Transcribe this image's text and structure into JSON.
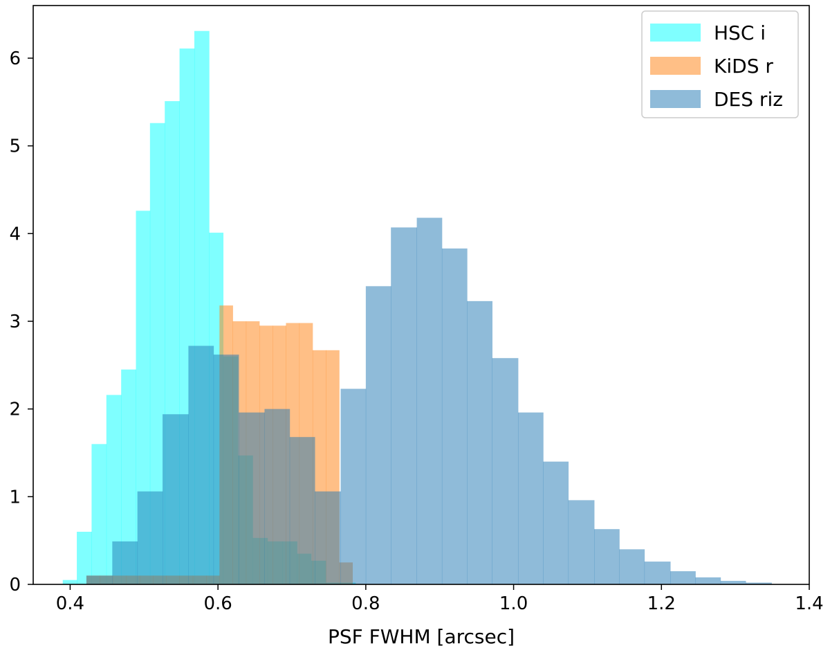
{
  "chart_data": {
    "type": "histogram",
    "title": "",
    "xlabel": "PSF FWHM [arcsec]",
    "ylabel": "",
    "xlim": [
      0.35,
      1.4
    ],
    "ylim": [
      0,
      6.6
    ],
    "xticks": [
      0.4,
      0.6,
      0.8,
      1.0,
      1.2,
      1.4
    ],
    "xtick_labels": [
      "0.4",
      "0.6",
      "0.8",
      "1.0",
      "1.2",
      "1.4"
    ],
    "yticks": [
      0,
      1,
      2,
      3,
      4,
      5,
      6
    ],
    "ytick_labels": [
      "0",
      "1",
      "2",
      "3",
      "4",
      "5",
      "6"
    ],
    "grid": false,
    "legend_position": "top-right",
    "series": [
      {
        "name": "HSC i",
        "color": "#00ffff",
        "opacity": 0.5,
        "bin_edges": [
          0.39,
          0.409,
          0.429,
          0.449,
          0.469,
          0.489,
          0.508,
          0.528,
          0.548,
          0.568,
          0.588,
          0.607,
          0.627,
          0.647,
          0.667,
          0.687,
          0.707,
          0.726,
          0.746,
          0.766,
          0.786
        ],
        "values": [
          0.05,
          0.6,
          1.6,
          2.16,
          2.45,
          4.26,
          5.26,
          5.51,
          6.11,
          6.31,
          4.01,
          2.6,
          1.47,
          0.53,
          0.49,
          0.49,
          0.35,
          0.27,
          0.02,
          0.02
        ]
      },
      {
        "name": "KiDS r",
        "color": "#ff7f0e",
        "opacity": 0.5,
        "bin_edges": [
          0.422,
          0.44,
          0.458,
          0.476,
          0.494,
          0.512,
          0.53,
          0.548,
          0.566,
          0.584,
          0.602,
          0.62,
          0.638,
          0.656,
          0.674,
          0.692,
          0.71,
          0.728,
          0.746,
          0.764,
          0.782
        ],
        "values": [
          0.1,
          0.1,
          0.1,
          0.1,
          0.1,
          0.1,
          0.1,
          0.1,
          0.1,
          0.1,
          3.18,
          3.0,
          3.0,
          2.95,
          2.95,
          2.98,
          2.98,
          2.67,
          2.67,
          0.25
        ]
      },
      {
        "name": "DES riz",
        "color": "#1f77b4",
        "opacity": 0.5,
        "bin_edges": [
          0.422,
          0.457,
          0.491,
          0.525,
          0.56,
          0.594,
          0.628,
          0.663,
          0.697,
          0.731,
          0.766,
          0.8,
          0.834,
          0.869,
          0.903,
          0.937,
          0.971,
          1.006,
          1.04,
          1.074,
          1.109,
          1.143,
          1.177,
          1.212,
          1.246,
          1.28,
          1.314,
          1.349
        ],
        "values": [
          0.1,
          0.49,
          1.06,
          1.94,
          2.72,
          2.62,
          1.96,
          2.0,
          1.68,
          1.06,
          2.23,
          3.4,
          4.07,
          4.18,
          3.83,
          3.23,
          2.58,
          1.96,
          1.4,
          0.96,
          0.63,
          0.4,
          0.26,
          0.15,
          0.08,
          0.04,
          0.02
        ]
      }
    ]
  }
}
